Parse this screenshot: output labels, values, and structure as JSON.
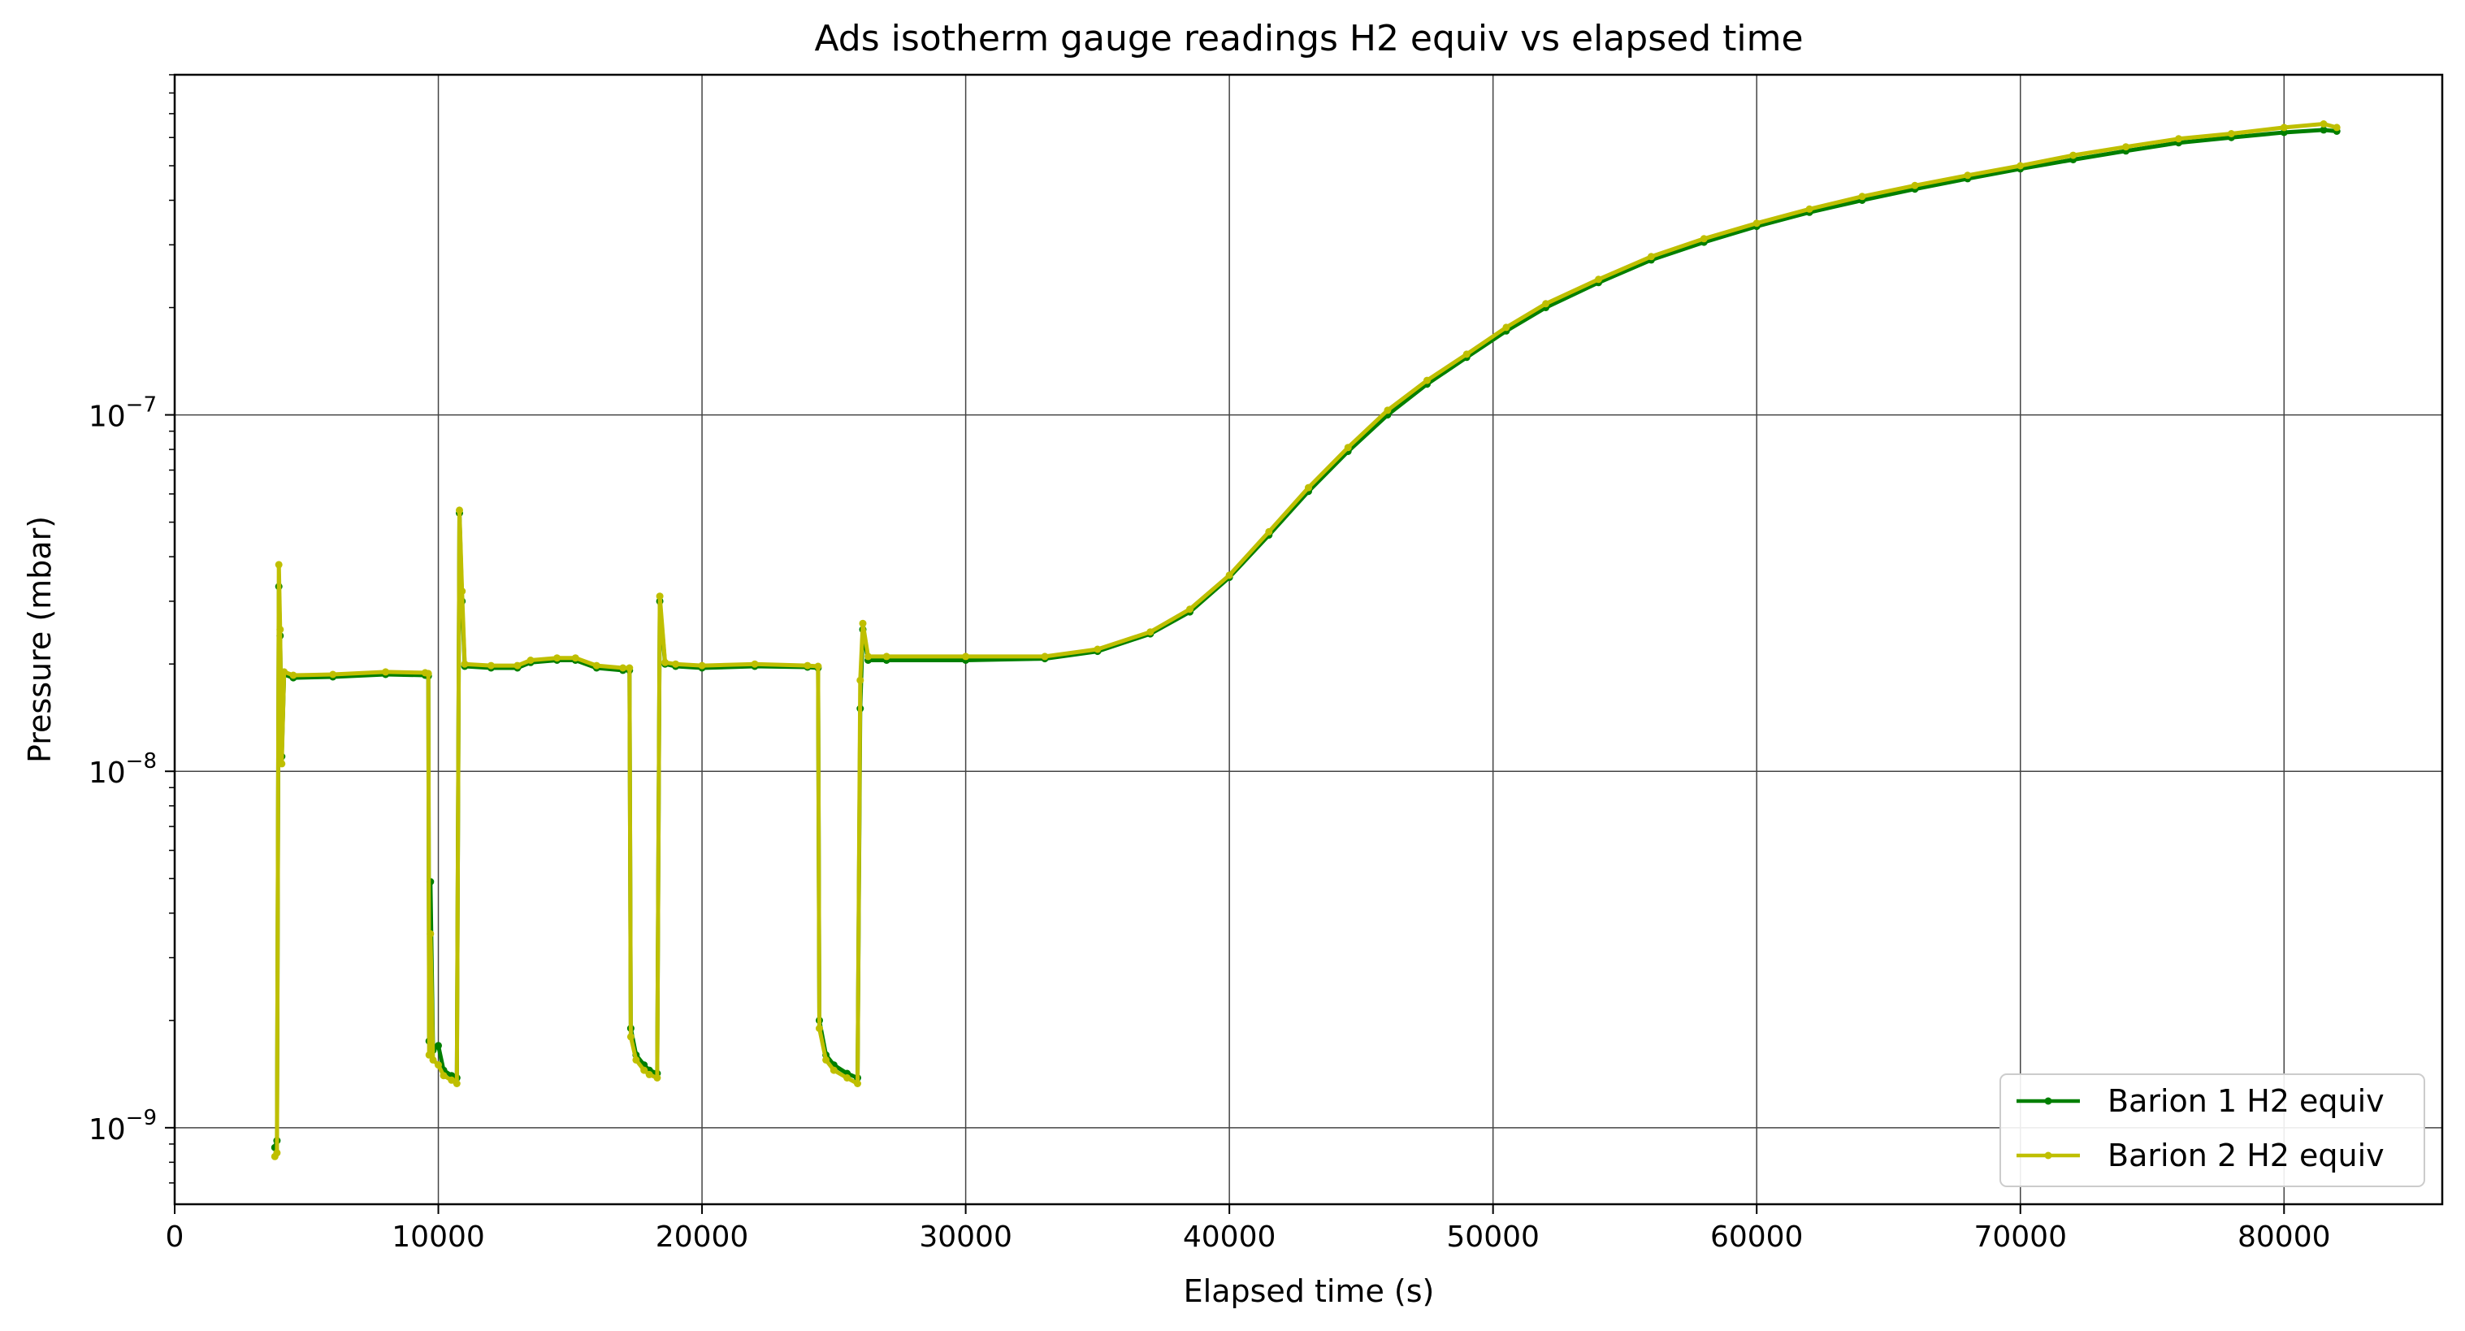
{
  "chart_data": {
    "type": "line",
    "title": "Ads isotherm gauge readings H2 equiv vs elapsed time",
    "xlabel": "Elapsed time (s)",
    "ylabel": "Pressure (mbar)",
    "xlim": [
      0,
      86000
    ],
    "ylim": [
      6.1e-10,
      9e-07
    ],
    "yscale": "log",
    "grid": true,
    "legend_position": "lower right",
    "xticks": [
      {
        "value": 0,
        "label": "0"
      },
      {
        "value": 10000,
        "label": "10000"
      },
      {
        "value": 20000,
        "label": "20000"
      },
      {
        "value": 30000,
        "label": "30000"
      },
      {
        "value": 40000,
        "label": "40000"
      },
      {
        "value": 50000,
        "label": "50000"
      },
      {
        "value": 60000,
        "label": "60000"
      },
      {
        "value": 70000,
        "label": "70000"
      },
      {
        "value": 80000,
        "label": "80000"
      }
    ],
    "yticks": [
      {
        "value": 1e-09,
        "base": "10",
        "exp": "−9"
      },
      {
        "value": 1e-08,
        "base": "10",
        "exp": "−8"
      },
      {
        "value": 1e-07,
        "base": "10",
        "exp": "−7"
      }
    ],
    "series": [
      {
        "name": "Barion 1 H2 equiv",
        "color": "#007f00",
        "points": [
          [
            3800,
            8.8e-10
          ],
          [
            3880,
            9.2e-10
          ],
          [
            3950,
            3.3e-08
          ],
          [
            4000,
            2.4e-08
          ],
          [
            4060,
            1.1e-08
          ],
          [
            4150,
            1.87e-08
          ],
          [
            4500,
            1.83e-08
          ],
          [
            6000,
            1.84e-08
          ],
          [
            8000,
            1.87e-08
          ],
          [
            9500,
            1.86e-08
          ],
          [
            9620,
            1.85e-08
          ],
          [
            9650,
            1.75e-09
          ],
          [
            9700,
            4.9e-09
          ],
          [
            9800,
            1.65e-09
          ],
          [
            10000,
            1.7e-09
          ],
          [
            10200,
            1.45e-09
          ],
          [
            10500,
            1.4e-09
          ],
          [
            10700,
            1.38e-09
          ],
          [
            10800,
            5.3e-08
          ],
          [
            10900,
            3e-08
          ],
          [
            11000,
            1.97e-08
          ],
          [
            12000,
            1.95e-08
          ],
          [
            13000,
            1.95e-08
          ],
          [
            13500,
            2.02e-08
          ],
          [
            14500,
            2.05e-08
          ],
          [
            15200,
            2.05e-08
          ],
          [
            16000,
            1.95e-08
          ],
          [
            17000,
            1.92e-08
          ],
          [
            17250,
            1.92e-08
          ],
          [
            17300,
            1.9e-09
          ],
          [
            17500,
            1.6e-09
          ],
          [
            17800,
            1.5e-09
          ],
          [
            18000,
            1.45e-09
          ],
          [
            18300,
            1.42e-09
          ],
          [
            18400,
            3e-08
          ],
          [
            18600,
            2e-08
          ],
          [
            19000,
            1.97e-08
          ],
          [
            20000,
            1.95e-08
          ],
          [
            22000,
            1.97e-08
          ],
          [
            24000,
            1.96e-08
          ],
          [
            24400,
            1.95e-08
          ],
          [
            24450,
            2e-09
          ],
          [
            24700,
            1.6e-09
          ],
          [
            25000,
            1.5e-09
          ],
          [
            25500,
            1.42e-09
          ],
          [
            25900,
            1.38e-09
          ],
          [
            26000,
            1.5e-08
          ],
          [
            26100,
            2.5e-08
          ],
          [
            26300,
            2.05e-08
          ],
          [
            27000,
            2.05e-08
          ],
          [
            30000,
            2.05e-08
          ],
          [
            33000,
            2.07e-08
          ],
          [
            35000,
            2.17e-08
          ],
          [
            37000,
            2.43e-08
          ],
          [
            38500,
            2.8e-08
          ],
          [
            40000,
            3.5e-08
          ],
          [
            41500,
            4.6e-08
          ],
          [
            43000,
            6.1e-08
          ],
          [
            44500,
            7.9e-08
          ],
          [
            46000,
            1e-07
          ],
          [
            47500,
            1.22e-07
          ],
          [
            49000,
            1.45e-07
          ],
          [
            50500,
            1.72e-07
          ],
          [
            52000,
            2e-07
          ],
          [
            54000,
            2.35e-07
          ],
          [
            56000,
            2.72e-07
          ],
          [
            58000,
            3.05e-07
          ],
          [
            60000,
            3.38e-07
          ],
          [
            62000,
            3.7e-07
          ],
          [
            64000,
            4e-07
          ],
          [
            66000,
            4.3e-07
          ],
          [
            68000,
            4.6e-07
          ],
          [
            70000,
            4.9e-07
          ],
          [
            72000,
            5.2e-07
          ],
          [
            74000,
            5.5e-07
          ],
          [
            76000,
            5.8e-07
          ],
          [
            78000,
            6e-07
          ],
          [
            80000,
            6.2e-07
          ],
          [
            81500,
            6.3e-07
          ],
          [
            82000,
            6.25e-07
          ]
        ]
      },
      {
        "name": "Barion 2 H2 equiv",
        "color": "#bfbf00",
        "points": [
          [
            3800,
            8.3e-10
          ],
          [
            3880,
            8.5e-10
          ],
          [
            3950,
            3.8e-08
          ],
          [
            4000,
            2.5e-08
          ],
          [
            4060,
            1.05e-08
          ],
          [
            4150,
            1.9e-08
          ],
          [
            4500,
            1.86e-08
          ],
          [
            6000,
            1.87e-08
          ],
          [
            8000,
            1.9e-08
          ],
          [
            9500,
            1.89e-08
          ],
          [
            9620,
            1.88e-08
          ],
          [
            9650,
            1.6e-09
          ],
          [
            9700,
            3.5e-09
          ],
          [
            9800,
            1.55e-09
          ],
          [
            10000,
            1.5e-09
          ],
          [
            10200,
            1.4e-09
          ],
          [
            10500,
            1.36e-09
          ],
          [
            10700,
            1.33e-09
          ],
          [
            10800,
            5.4e-08
          ],
          [
            10900,
            3.2e-08
          ],
          [
            11000,
            2e-08
          ],
          [
            12000,
            1.98e-08
          ],
          [
            13000,
            1.98e-08
          ],
          [
            13500,
            2.05e-08
          ],
          [
            14500,
            2.08e-08
          ],
          [
            15200,
            2.08e-08
          ],
          [
            16000,
            1.98e-08
          ],
          [
            17000,
            1.95e-08
          ],
          [
            17250,
            1.95e-08
          ],
          [
            17300,
            1.8e-09
          ],
          [
            17500,
            1.55e-09
          ],
          [
            17800,
            1.45e-09
          ],
          [
            18000,
            1.41e-09
          ],
          [
            18300,
            1.38e-09
          ],
          [
            18400,
            3.1e-08
          ],
          [
            18600,
            2.02e-08
          ],
          [
            19000,
            2e-08
          ],
          [
            20000,
            1.98e-08
          ],
          [
            22000,
            2e-08
          ],
          [
            24000,
            1.98e-08
          ],
          [
            24400,
            1.97e-08
          ],
          [
            24450,
            1.9e-09
          ],
          [
            24700,
            1.55e-09
          ],
          [
            25000,
            1.45e-09
          ],
          [
            25500,
            1.38e-09
          ],
          [
            25900,
            1.33e-09
          ],
          [
            26000,
            1.8e-08
          ],
          [
            26100,
            2.6e-08
          ],
          [
            26300,
            2.1e-08
          ],
          [
            27000,
            2.1e-08
          ],
          [
            30000,
            2.1e-08
          ],
          [
            33000,
            2.1e-08
          ],
          [
            35000,
            2.2e-08
          ],
          [
            37000,
            2.46e-08
          ],
          [
            38500,
            2.85e-08
          ],
          [
            40000,
            3.55e-08
          ],
          [
            41500,
            4.7e-08
          ],
          [
            43000,
            6.25e-08
          ],
          [
            44500,
            8.1e-08
          ],
          [
            46000,
            1.03e-07
          ],
          [
            47500,
            1.25e-07
          ],
          [
            49000,
            1.48e-07
          ],
          [
            50500,
            1.76e-07
          ],
          [
            52000,
            2.05e-07
          ],
          [
            54000,
            2.4e-07
          ],
          [
            56000,
            2.78e-07
          ],
          [
            58000,
            3.12e-07
          ],
          [
            60000,
            3.45e-07
          ],
          [
            62000,
            3.78e-07
          ],
          [
            64000,
            4.1e-07
          ],
          [
            66000,
            4.4e-07
          ],
          [
            68000,
            4.7e-07
          ],
          [
            70000,
            5e-07
          ],
          [
            72000,
            5.35e-07
          ],
          [
            74000,
            5.65e-07
          ],
          [
            76000,
            5.95e-07
          ],
          [
            78000,
            6.15e-07
          ],
          [
            80000,
            6.4e-07
          ],
          [
            81500,
            6.55e-07
          ],
          [
            82000,
            6.4e-07
          ]
        ]
      }
    ]
  }
}
